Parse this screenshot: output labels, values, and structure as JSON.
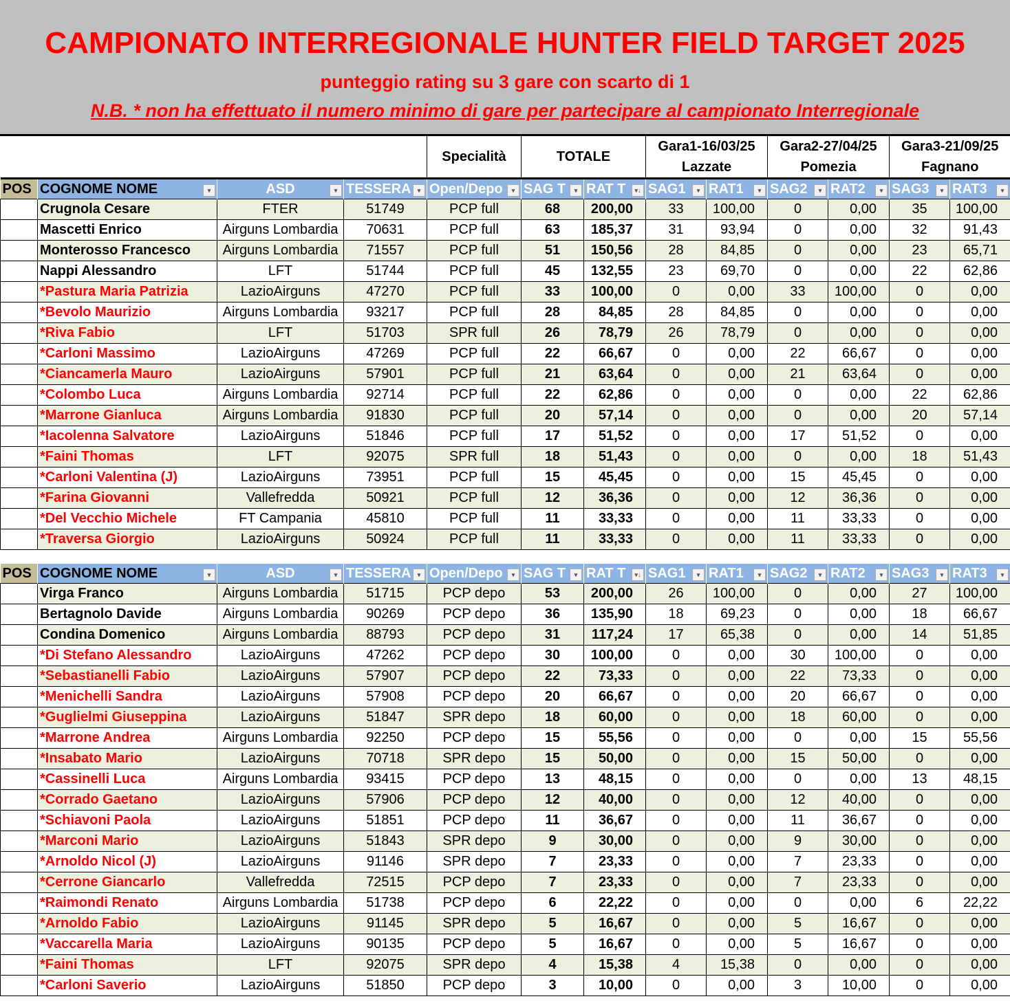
{
  "header": {
    "title": "CAMPIONATO INTERREGIONALE HUNTER FIELD TARGET 2025",
    "subtitle": "punteggio rating su 3 gare con scarto di 1",
    "note": "N.B.   * non ha effettuato il numero minimo di gare per partecipare al campionato Interregionale"
  },
  "groups": {
    "specialita": "Specialità",
    "totale": "TOTALE",
    "gara1_date": "Gara1-16/03/25",
    "gara1_place": "Lazzate",
    "gara2_date": "Gara2-27/04/25",
    "gara2_place": "Pomezia",
    "gara3_date": "Gara3-21/09/25",
    "gara3_place": "Fagnano"
  },
  "columns": [
    "POS",
    "COGNOME NOME",
    "ASD",
    "TESSERA",
    "Open/Depo",
    "SAG T",
    "RAT T",
    "SAG1",
    "RAT1",
    "SAG2",
    "RAT2",
    "SAG3",
    "RAT3"
  ],
  "colors": {
    "header_blue": "#8db4e2",
    "pos_header": "#c4bd97",
    "row_green": "#ebf1de",
    "band_grey": "#c0c0c0",
    "red": "#ff0000"
  },
  "tables": [
    {
      "rows": [
        [
          "",
          "Crugnola Cesare",
          "FTER",
          "51749",
          "PCP full",
          "68",
          "200,00",
          "33",
          "100,00",
          "0",
          "0,00",
          "35",
          "100,00"
        ],
        [
          "",
          "Mascetti Enrico",
          "Airguns Lombardia",
          "70631",
          "PCP full",
          "63",
          "185,37",
          "31",
          "93,94",
          "0",
          "0,00",
          "32",
          "91,43"
        ],
        [
          "",
          "Monterosso Francesco",
          "Airguns Lombardia",
          "71557",
          "PCP full",
          "51",
          "150,56",
          "28",
          "84,85",
          "0",
          "0,00",
          "23",
          "65,71"
        ],
        [
          "",
          "Nappi Alessandro",
          "LFT",
          "51744",
          "PCP full",
          "45",
          "132,55",
          "23",
          "69,70",
          "0",
          "0,00",
          "22",
          "62,86"
        ],
        [
          "",
          "*Pastura Maria Patrizia",
          "LazioAirguns",
          "47270",
          "PCP full",
          "33",
          "100,00",
          "0",
          "0,00",
          "33",
          "100,00",
          "0",
          "0,00"
        ],
        [
          "",
          "*Bevolo Maurizio",
          "Airguns Lombardia",
          "93217",
          "PCP full",
          "28",
          "84,85",
          "28",
          "84,85",
          "0",
          "0,00",
          "0",
          "0,00"
        ],
        [
          "",
          "*Riva Fabio",
          "LFT",
          "51703",
          "SPR full",
          "26",
          "78,79",
          "26",
          "78,79",
          "0",
          "0,00",
          "0",
          "0,00"
        ],
        [
          "",
          "*Carloni Massimo",
          "LazioAirguns",
          "47269",
          "PCP full",
          "22",
          "66,67",
          "0",
          "0,00",
          "22",
          "66,67",
          "0",
          "0,00"
        ],
        [
          "",
          "*Ciancamerla Mauro",
          "LazioAirguns",
          "57901",
          "PCP full",
          "21",
          "63,64",
          "0",
          "0,00",
          "21",
          "63,64",
          "0",
          "0,00"
        ],
        [
          "",
          "*Colombo Luca",
          "Airguns Lombardia",
          "92714",
          "PCP full",
          "22",
          "62,86",
          "0",
          "0,00",
          "0",
          "0,00",
          "22",
          "62,86"
        ],
        [
          "",
          "*Marrone Gianluca",
          "Airguns Lombardia",
          "91830",
          "PCP full",
          "20",
          "57,14",
          "0",
          "0,00",
          "0",
          "0,00",
          "20",
          "57,14"
        ],
        [
          "",
          "*Iacolenna Salvatore",
          "LazioAirguns",
          "51846",
          "PCP full",
          "17",
          "51,52",
          "0",
          "0,00",
          "17",
          "51,52",
          "0",
          "0,00"
        ],
        [
          "",
          "*Faini Thomas",
          "LFT",
          "92075",
          "SPR full",
          "18",
          "51,43",
          "0",
          "0,00",
          "0",
          "0,00",
          "18",
          "51,43"
        ],
        [
          "",
          "*Carloni Valentina (J)",
          "LazioAirguns",
          "73951",
          "PCP full",
          "15",
          "45,45",
          "0",
          "0,00",
          "15",
          "45,45",
          "0",
          "0,00"
        ],
        [
          "",
          "*Farina Giovanni",
          "Vallefredda",
          "50921",
          "PCP full",
          "12",
          "36,36",
          "0",
          "0,00",
          "12",
          "36,36",
          "0",
          "0,00"
        ],
        [
          "",
          "*Del Vecchio Michele",
          "FT Campania",
          "45810",
          "PCP full",
          "11",
          "33,33",
          "0",
          "0,00",
          "11",
          "33,33",
          "0",
          "0,00"
        ],
        [
          "",
          "*Traversa Giorgio",
          "LazioAirguns",
          "50924",
          "PCP full",
          "11",
          "33,33",
          "0",
          "0,00",
          "11",
          "33,33",
          "0",
          "0,00"
        ]
      ]
    },
    {
      "rows": [
        [
          "",
          "Virga Franco",
          "Airguns Lombardia",
          "51715",
          "PCP depo",
          "53",
          "200,00",
          "26",
          "100,00",
          "0",
          "0,00",
          "27",
          "100,00"
        ],
        [
          "",
          "Bertagnolo Davide",
          "Airguns Lombardia",
          "90269",
          "PCP depo",
          "36",
          "135,90",
          "18",
          "69,23",
          "0",
          "0,00",
          "18",
          "66,67"
        ],
        [
          "",
          "Condina Domenico",
          "Airguns Lombardia",
          "88793",
          "PCP depo",
          "31",
          "117,24",
          "17",
          "65,38",
          "0",
          "0,00",
          "14",
          "51,85"
        ],
        [
          "",
          "*Di Stefano Alessandro",
          "LazioAirguns",
          "47262",
          "PCP depo",
          "30",
          "100,00",
          "0",
          "0,00",
          "30",
          "100,00",
          "0",
          "0,00"
        ],
        [
          "",
          "*Sebastianelli Fabio",
          "LazioAirguns",
          "57907",
          "PCP depo",
          "22",
          "73,33",
          "0",
          "0,00",
          "22",
          "73,33",
          "0",
          "0,00"
        ],
        [
          "",
          "*Menichelli Sandra",
          "LazioAirguns",
          "57908",
          "PCP depo",
          "20",
          "66,67",
          "0",
          "0,00",
          "20",
          "66,67",
          "0",
          "0,00"
        ],
        [
          "",
          "*Guglielmi Giuseppina",
          "LazioAirguns",
          "51847",
          "SPR depo",
          "18",
          "60,00",
          "0",
          "0,00",
          "18",
          "60,00",
          "0",
          "0,00"
        ],
        [
          "",
          "*Marrone Andrea",
          "Airguns Lombardia",
          "92250",
          "PCP depo",
          "15",
          "55,56",
          "0",
          "0,00",
          "0",
          "0,00",
          "15",
          "55,56"
        ],
        [
          "",
          "*Insabato Mario",
          "LazioAirguns",
          "70718",
          "SPR depo",
          "15",
          "50,00",
          "0",
          "0,00",
          "15",
          "50,00",
          "0",
          "0,00"
        ],
        [
          "",
          "*Cassinelli Luca",
          "Airguns Lombardia",
          "93415",
          "PCP depo",
          "13",
          "48,15",
          "0",
          "0,00",
          "0",
          "0,00",
          "13",
          "48,15"
        ],
        [
          "",
          "*Corrado Gaetano",
          "LazioAirguns",
          "57906",
          "PCP depo",
          "12",
          "40,00",
          "0",
          "0,00",
          "12",
          "40,00",
          "0",
          "0,00"
        ],
        [
          "",
          "*Schiavoni Paola",
          "LazioAirguns",
          "51851",
          "PCP depo",
          "11",
          "36,67",
          "0",
          "0,00",
          "11",
          "36,67",
          "0",
          "0,00"
        ],
        [
          "",
          "*Marconi Mario",
          "LazioAirguns",
          "51843",
          "SPR depo",
          "9",
          "30,00",
          "0",
          "0,00",
          "9",
          "30,00",
          "0",
          "0,00"
        ],
        [
          "",
          "*Arnoldo Nicol (J)",
          "LazioAirguns",
          "91146",
          "SPR depo",
          "7",
          "23,33",
          "0",
          "0,00",
          "7",
          "23,33",
          "0",
          "0,00"
        ],
        [
          "",
          "*Cerrone Giancarlo",
          "Vallefredda",
          "72515",
          "PCP depo",
          "7",
          "23,33",
          "0",
          "0,00",
          "7",
          "23,33",
          "0",
          "0,00"
        ],
        [
          "",
          "*Raimondi Renato",
          "Airguns Lombardia",
          "51738",
          "PCP depo",
          "6",
          "22,22",
          "0",
          "0,00",
          "0",
          "0,00",
          "6",
          "22,22"
        ],
        [
          "",
          "*Arnoldo Fabio",
          "LazioAirguns",
          "91145",
          "SPR depo",
          "5",
          "16,67",
          "0",
          "0,00",
          "5",
          "16,67",
          "0",
          "0,00"
        ],
        [
          "",
          "*Vaccarella Maria",
          "LazioAirguns",
          "90135",
          "PCP depo",
          "5",
          "16,67",
          "0",
          "0,00",
          "5",
          "16,67",
          "0",
          "0,00"
        ],
        [
          "",
          "*Faini Thomas",
          "LFT",
          "92075",
          "SPR depo",
          "4",
          "15,38",
          "4",
          "15,38",
          "0",
          "0,00",
          "0",
          "0,00"
        ],
        [
          "",
          "*Carloni Saverio",
          "LazioAirguns",
          "51850",
          "PCP depo",
          "3",
          "10,00",
          "0",
          "0,00",
          "3",
          "10,00",
          "0",
          "0,00"
        ]
      ]
    }
  ]
}
